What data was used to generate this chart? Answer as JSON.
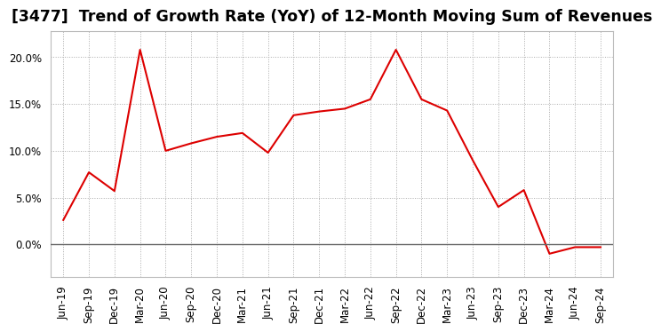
{
  "title": "[3477]  Trend of Growth Rate (YoY) of 12-Month Moving Sum of Revenues",
  "x_labels": [
    "Jun-19",
    "Sep-19",
    "Dec-19",
    "Mar-20",
    "Jun-20",
    "Sep-20",
    "Dec-20",
    "Mar-21",
    "Jun-21",
    "Sep-21",
    "Dec-21",
    "Mar-22",
    "Jun-22",
    "Sep-22",
    "Dec-22",
    "Mar-23",
    "Jun-23",
    "Sep-23",
    "Dec-23",
    "Mar-24",
    "Jun-24",
    "Sep-24"
  ],
  "y_values": [
    0.026,
    0.077,
    0.057,
    0.208,
    0.1,
    0.108,
    0.115,
    0.119,
    0.098,
    0.138,
    0.142,
    0.145,
    0.155,
    0.208,
    0.155,
    0.143,
    0.09,
    0.04,
    0.058,
    -0.01,
    -0.003,
    -0.003
  ],
  "line_color": "#dd0000",
  "background_color": "#ffffff",
  "plot_bg_color": "#ffffff",
  "grid_color": "#aaaaaa",
  "ylim": [
    -0.035,
    0.228
  ],
  "yticks": [
    0.0,
    0.05,
    0.1,
    0.15,
    0.2
  ],
  "title_fontsize": 12.5,
  "tick_fontsize": 8.5
}
